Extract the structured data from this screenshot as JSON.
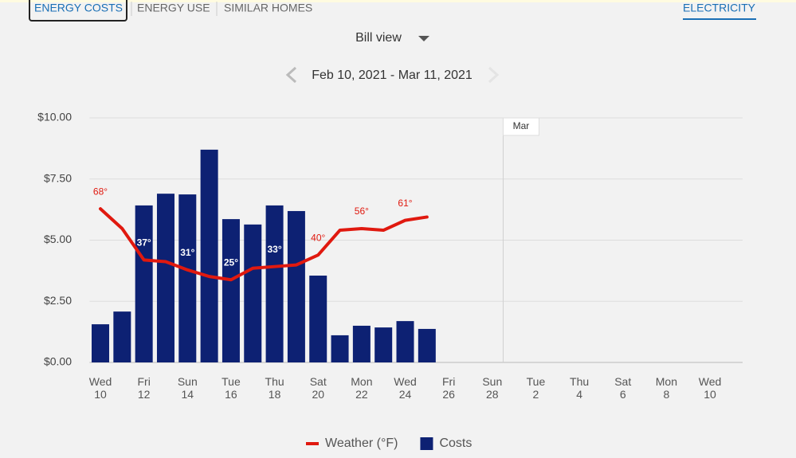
{
  "tabs": [
    "ENERGY COSTS",
    "ENERGY USE",
    "SIMILAR HOMES"
  ],
  "utility": "ELECTRICITY",
  "view": "Bill view",
  "date_range": "Feb 10, 2021 - Mar 11, 2021",
  "chart_data": {
    "type": "bar",
    "categories": [
      "Wed 10",
      null,
      "Fri 12",
      null,
      "Sun 14",
      null,
      "Tue 16",
      null,
      "Thu 18",
      null,
      "Sat 20",
      null,
      "Mon 22",
      null,
      "Wed 24",
      null,
      "Fri 26",
      null,
      "Sun 28",
      null,
      "Tue 2",
      null,
      "Thu 4",
      null,
      "Sat 6",
      null,
      "Mon 8",
      null,
      "Wed 10",
      null
    ],
    "month_marker": {
      "label": "Mar",
      "category_index": 19
    },
    "series": [
      {
        "name": "Weather (°F)",
        "type": "line",
        "axis": "y2",
        "color": "#e0190f",
        "values": [
          68,
          56,
          37,
          36,
          31,
          27,
          25,
          32,
          33,
          34,
          40,
          55,
          56,
          55,
          61,
          63,
          null,
          null,
          null,
          null,
          null,
          null,
          null,
          null,
          null,
          null,
          null,
          null,
          null,
          null
        ],
        "value_labels": [
          "68°",
          null,
          "37°",
          null,
          "31°",
          null,
          "25°",
          null,
          "33°",
          null,
          "40°",
          null,
          "56°",
          null,
          "61°",
          null,
          null,
          null,
          null,
          null,
          null,
          null,
          null,
          null,
          null,
          null,
          null,
          null,
          null,
          null
        ]
      },
      {
        "name": "Costs",
        "type": "bar",
        "color": "#0d2173",
        "values": [
          1.56,
          2.08,
          6.42,
          6.9,
          6.87,
          8.7,
          5.86,
          5.64,
          6.42,
          6.19,
          3.55,
          1.11,
          1.5,
          1.43,
          1.69,
          1.37,
          null,
          null,
          null,
          null,
          null,
          null,
          null,
          null,
          null,
          null,
          null,
          null,
          null,
          null
        ]
      }
    ],
    "ylim": [
      0,
      10
    ],
    "yticks": [
      {
        "value": 0,
        "label": "$0.00"
      },
      {
        "value": 2.5,
        "label": "$2.50"
      },
      {
        "value": 5,
        "label": "$5.00"
      },
      {
        "value": 7.5,
        "label": "$7.50"
      },
      {
        "value": 10,
        "label": "$10.00"
      }
    ],
    "y2lim": [
      -25,
      123
    ],
    "grid": true,
    "legend": "bottom"
  }
}
